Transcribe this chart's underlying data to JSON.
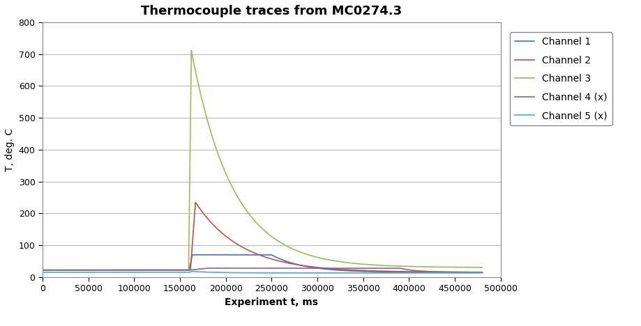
{
  "title": "Thermocouple traces from MC0274.3",
  "xlabel": "Experiment t, ms",
  "ylabel": "T, deg. C",
  "xlim": [
    0,
    500000
  ],
  "ylim": [
    0,
    800
  ],
  "yticks": [
    0,
    100,
    200,
    300,
    400,
    500,
    600,
    700,
    800
  ],
  "xticks": [
    0,
    50000,
    100000,
    150000,
    200000,
    250000,
    300000,
    350000,
    400000,
    450000,
    500000
  ],
  "xtick_labels": [
    "0",
    "50000",
    "100000",
    "150000",
    "200000",
    "250000",
    "300000",
    "350000",
    "400000",
    "450000",
    "500000"
  ],
  "channels": [
    {
      "label": "Channel 1",
      "color": "#4472C4",
      "baseline": 22,
      "peak": 70,
      "rise_t": 160000,
      "peak_t": 163500,
      "hold_end": 250000,
      "decay_tau": 35000,
      "end_val": 15
    },
    {
      "label": "Channel 2",
      "color": "#C0504D",
      "baseline": 22,
      "peak": 235,
      "rise_t": 161500,
      "peak_t": 167000,
      "hold_end": null,
      "decay_tau": 50000,
      "end_val": 15
    },
    {
      "label": "Channel 3",
      "color": "#9BBB59",
      "baseline": 22,
      "peak": 712,
      "rise_t": 159500,
      "peak_t": 162500,
      "hold_end": null,
      "decay_tau": 45000,
      "end_val": 30
    },
    {
      "label": "Channel 4 (x)",
      "color": "#8064A2",
      "baseline": 22,
      "peak": 28,
      "rise_t": 161000,
      "peak_t": 180000,
      "hold_end": 390000,
      "decay_tau": 20000,
      "end_val": 15
    },
    {
      "label": "Channel 5 (x)",
      "color": "#4BACC6",
      "baseline": 15,
      "peak": 18,
      "rise_t": 160000,
      "peak_t": 163000,
      "hold_end": null,
      "decay_tau": 25000,
      "end_val": 13
    }
  ],
  "background_color": "#FFFFFF",
  "grid_color": "#AAAAAA",
  "title_fontsize": 13,
  "label_fontsize": 10,
  "tick_fontsize": 9,
  "legend_fontsize": 10
}
